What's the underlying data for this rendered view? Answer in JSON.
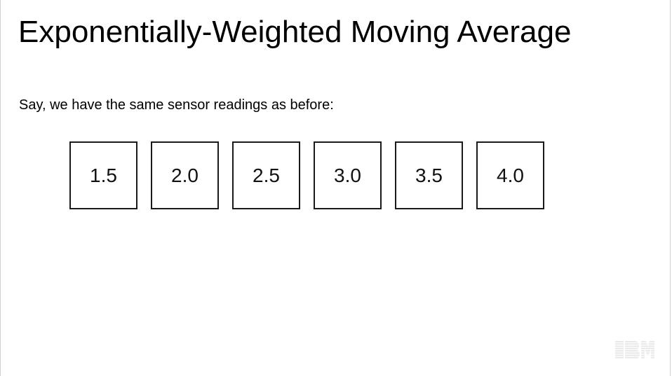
{
  "slide": {
    "title": "Exponentially-Weighted Moving Average",
    "intro": "Say, we have the same sensor readings as before:",
    "readings": [
      "1.5",
      "2.0",
      "2.5",
      "3.0",
      "3.5",
      "4.0"
    ],
    "logo": {
      "text": "IBM",
      "icon": "ibm-logo",
      "color": "#1a1a1a"
    }
  }
}
